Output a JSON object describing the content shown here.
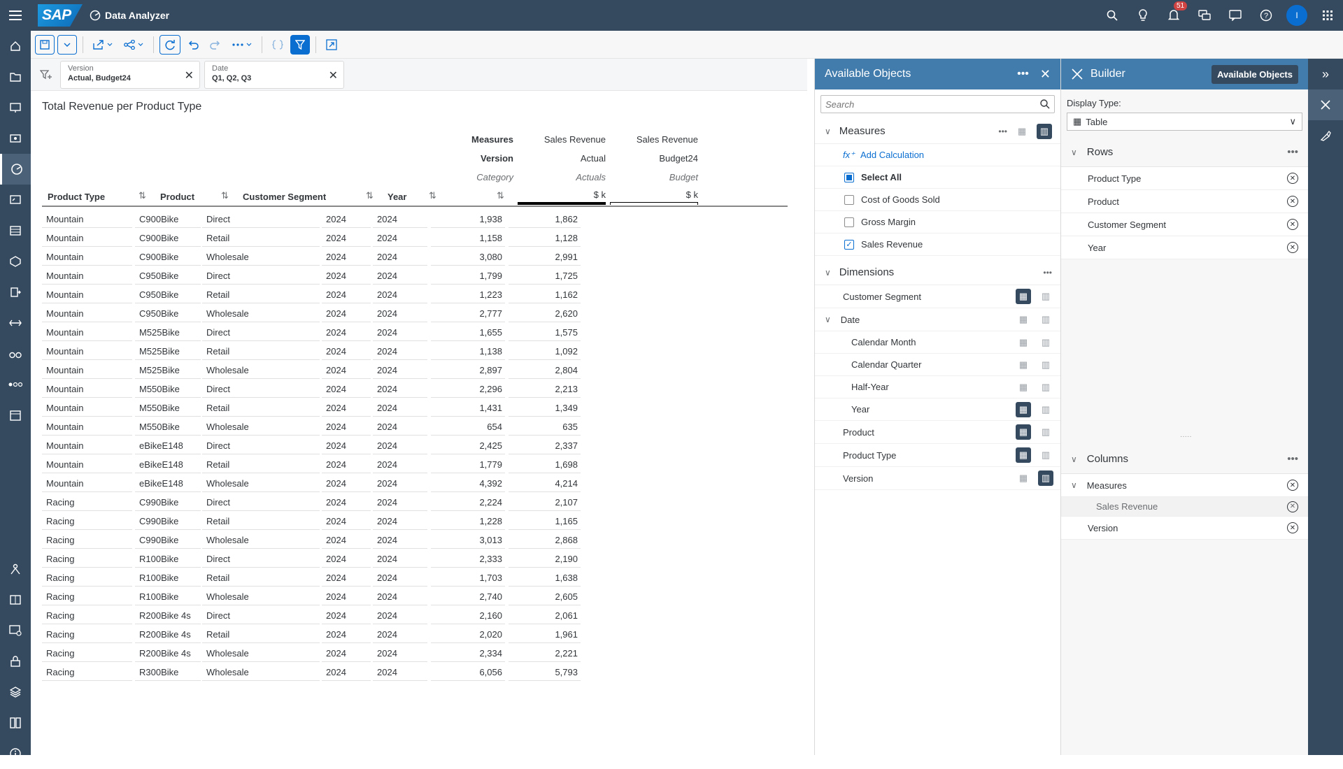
{
  "shell": {
    "logo": "SAP",
    "app_title": "Data Analyzer",
    "notification_count": "51",
    "avatar_initial": "I"
  },
  "filters": [
    {
      "label": "Version",
      "value": "Actual, Budget24"
    },
    {
      "label": "Date",
      "value": "Q1, Q2, Q3"
    }
  ],
  "table": {
    "title": "Total Revenue per Product Type",
    "header_labels": {
      "measures": "Measures",
      "version": "Version",
      "category": "Category"
    },
    "measure_columns": [
      {
        "measure": "Sales Revenue",
        "version": "Actual",
        "category": "Actuals",
        "unit": "$ k"
      },
      {
        "measure": "Sales Revenue",
        "version": "Budget24",
        "category": "Budget",
        "unit": "$ k"
      }
    ],
    "dimension_headers": [
      "Product Type",
      "Product",
      "Customer Segment",
      "Year"
    ],
    "rows": [
      [
        "Mountain",
        "C900Bike",
        "Direct",
        "2024",
        "2024",
        "1,938",
        "1,862"
      ],
      [
        "Mountain",
        "C900Bike",
        "Retail",
        "2024",
        "2024",
        "1,158",
        "1,128"
      ],
      [
        "Mountain",
        "C900Bike",
        "Wholesale",
        "2024",
        "2024",
        "3,080",
        "2,991"
      ],
      [
        "Mountain",
        "C950Bike",
        "Direct",
        "2024",
        "2024",
        "1,799",
        "1,725"
      ],
      [
        "Mountain",
        "C950Bike",
        "Retail",
        "2024",
        "2024",
        "1,223",
        "1,162"
      ],
      [
        "Mountain",
        "C950Bike",
        "Wholesale",
        "2024",
        "2024",
        "2,777",
        "2,620"
      ],
      [
        "Mountain",
        "M525Bike",
        "Direct",
        "2024",
        "2024",
        "1,655",
        "1,575"
      ],
      [
        "Mountain",
        "M525Bike",
        "Retail",
        "2024",
        "2024",
        "1,138",
        "1,092"
      ],
      [
        "Mountain",
        "M525Bike",
        "Wholesale",
        "2024",
        "2024",
        "2,897",
        "2,804"
      ],
      [
        "Mountain",
        "M550Bike",
        "Direct",
        "2024",
        "2024",
        "2,296",
        "2,213"
      ],
      [
        "Mountain",
        "M550Bike",
        "Retail",
        "2024",
        "2024",
        "1,431",
        "1,349"
      ],
      [
        "Mountain",
        "M550Bike",
        "Wholesale",
        "2024",
        "2024",
        "654",
        "635"
      ],
      [
        "Mountain",
        "eBikeE148",
        "Direct",
        "2024",
        "2024",
        "2,425",
        "2,337"
      ],
      [
        "Mountain",
        "eBikeE148",
        "Retail",
        "2024",
        "2024",
        "1,779",
        "1,698"
      ],
      [
        "Mountain",
        "eBikeE148",
        "Wholesale",
        "2024",
        "2024",
        "4,392",
        "4,214"
      ],
      [
        "Racing",
        "C990Bike",
        "Direct",
        "2024",
        "2024",
        "2,224",
        "2,107"
      ],
      [
        "Racing",
        "C990Bike",
        "Retail",
        "2024",
        "2024",
        "1,228",
        "1,165"
      ],
      [
        "Racing",
        "C990Bike",
        "Wholesale",
        "2024",
        "2024",
        "3,013",
        "2,868"
      ],
      [
        "Racing",
        "R100Bike",
        "Direct",
        "2024",
        "2024",
        "2,333",
        "2,190"
      ],
      [
        "Racing",
        "R100Bike",
        "Retail",
        "2024",
        "2024",
        "1,703",
        "1,638"
      ],
      [
        "Racing",
        "R100Bike",
        "Wholesale",
        "2024",
        "2024",
        "2,740",
        "2,605"
      ],
      [
        "Racing",
        "R200Bike 4s",
        "Direct",
        "2024",
        "2024",
        "2,160",
        "2,061"
      ],
      [
        "Racing",
        "R200Bike 4s",
        "Retail",
        "2024",
        "2024",
        "2,020",
        "1,961"
      ],
      [
        "Racing",
        "R200Bike 4s",
        "Wholesale",
        "2024",
        "2024",
        "2,334",
        "2,221"
      ],
      [
        "Racing",
        "R300Bike",
        "Wholesale",
        "2024",
        "2024",
        "6,056",
        "5,793"
      ]
    ]
  },
  "available_objects": {
    "title": "Available Objects",
    "search_placeholder": "Search",
    "measures_label": "Measures",
    "add_calculation": "Add Calculation",
    "measures": [
      {
        "label": "Select All",
        "state": "partial",
        "bold": true
      },
      {
        "label": "Cost of Goods Sold",
        "state": "off"
      },
      {
        "label": "Gross Margin",
        "state": "off"
      },
      {
        "label": "Sales Revenue",
        "state": "on"
      }
    ],
    "dimensions_label": "Dimensions",
    "dimensions": [
      {
        "label": "Customer Segment",
        "level": 0,
        "rows_selected": true,
        "cols_selected": false
      },
      {
        "label": "Date",
        "level": 0,
        "expandable": true,
        "rows_selected": false,
        "cols_selected": false
      },
      {
        "label": "Calendar Month",
        "level": 1,
        "rows_selected": false,
        "cols_selected": false
      },
      {
        "label": "Calendar Quarter",
        "level": 1,
        "rows_selected": false,
        "cols_selected": false
      },
      {
        "label": "Half-Year",
        "level": 1,
        "rows_selected": false,
        "cols_selected": false
      },
      {
        "label": "Year",
        "level": 1,
        "rows_selected": true,
        "cols_selected": false
      },
      {
        "label": "Product",
        "level": 0,
        "rows_selected": true,
        "cols_selected": false
      },
      {
        "label": "Product Type",
        "level": 0,
        "rows_selected": true,
        "cols_selected": false
      },
      {
        "label": "Version",
        "level": 0,
        "rows_selected": false,
        "cols_selected": true
      }
    ]
  },
  "builder": {
    "title": "Builder",
    "available_objects_button": "Available Objects",
    "display_type_label": "Display Type:",
    "display_type_value": "Table",
    "rows_label": "Rows",
    "rows": [
      "Product Type",
      "Product",
      "Customer Segment",
      "Year"
    ],
    "columns_label": "Columns",
    "columns": [
      {
        "label": "Measures",
        "group": true
      },
      {
        "label": "Sales Revenue",
        "child": true
      },
      {
        "label": "Version"
      }
    ]
  },
  "colors": {
    "shell": "#354a5f",
    "panel_header": "#427cac",
    "accent": "#0a6ed1"
  }
}
